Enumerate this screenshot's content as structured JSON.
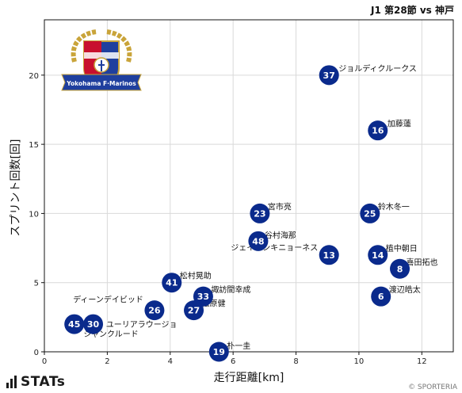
{
  "chart_data": {
    "type": "scatter",
    "title": "J1 第28節 vs 神戸",
    "xlabel": "走行距離[km]",
    "ylabel": "スプリント回数[回]",
    "xlim": [
      0,
      13
    ],
    "ylim": [
      0,
      24
    ],
    "xticks": [
      0,
      2,
      4,
      6,
      8,
      10,
      12
    ],
    "yticks": [
      0,
      5,
      10,
      15,
      20
    ],
    "grid": true,
    "points": [
      {
        "number": "37",
        "name": "ジョルディクルークス",
        "x": 9.05,
        "y": 20
      },
      {
        "number": "16",
        "name": "加藤蓮",
        "x": 10.6,
        "y": 16
      },
      {
        "number": "23",
        "name": "宮市亮",
        "x": 6.85,
        "y": 10
      },
      {
        "number": "25",
        "name": "鈴木冬一",
        "x": 10.35,
        "y": 10
      },
      {
        "number": "48",
        "name": "谷村海那",
        "x": 6.8,
        "y": 8
      },
      {
        "number": "13",
        "name": "ジェイソンキニョーネス",
        "x": 9.05,
        "y": 7
      },
      {
        "number": "14",
        "name": "植中朝日",
        "x": 10.6,
        "y": 7
      },
      {
        "number": "8",
        "name": "喜田拓也",
        "x": 11.3,
        "y": 6
      },
      {
        "number": "41",
        "name": "松村晃助",
        "x": 4.05,
        "y": 5
      },
      {
        "number": "33",
        "name": "諏訪間幸成",
        "x": 5.05,
        "y": 4
      },
      {
        "number": "6",
        "name": "渡辺皓太",
        "x": 10.7,
        "y": 4
      },
      {
        "number": "26",
        "name": "ディーンデイビッド",
        "x": 3.5,
        "y": 3
      },
      {
        "number": "27",
        "name": "松原健",
        "x": 4.75,
        "y": 3
      },
      {
        "number": "45",
        "name": "ユーリアラウージョ",
        "x": 0.95,
        "y": 2
      },
      {
        "number": "30",
        "name": "ジャンクルード",
        "x": 1.55,
        "y": 2
      },
      {
        "number": "19",
        "name": "朴一圭",
        "x": 5.55,
        "y": 0
      }
    ]
  },
  "logo": {
    "text": "Yokohama F·Marinos",
    "colors": [
      "#1f3f9e",
      "#c8102e",
      "#ffffff",
      "#c9a43a"
    ]
  },
  "brand": {
    "name": "STATs"
  },
  "credit": "© SPORTERIA",
  "colors": {
    "marker": "#0a2a8c",
    "marker_text": "#ffffff",
    "grid": "#d9d9d9"
  }
}
